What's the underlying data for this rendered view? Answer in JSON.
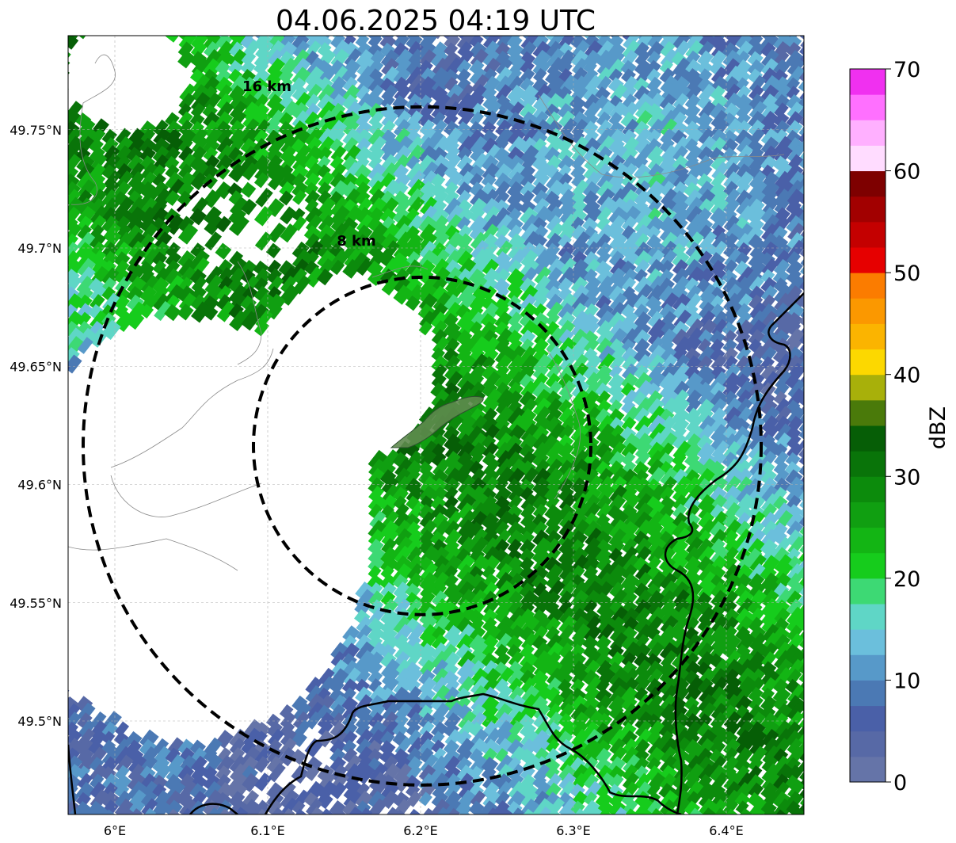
{
  "title": "04.06.2025 04:19 UTC",
  "map": {
    "lon_range": [
      5.97,
      6.45
    ],
    "lat_range": [
      49.46,
      49.79
    ],
    "x_ticks": [
      {
        "value": 6.0,
        "label": "6°E"
      },
      {
        "value": 6.1,
        "label": "6.1°E"
      },
      {
        "value": 6.2,
        "label": "6.2°E"
      },
      {
        "value": 6.3,
        "label": "6.3°E"
      },
      {
        "value": 6.4,
        "label": "6.4°E"
      }
    ],
    "y_ticks": [
      {
        "value": 49.5,
        "label": "49.5°N"
      },
      {
        "value": 49.55,
        "label": "49.55°N"
      },
      {
        "value": 49.6,
        "label": "49.6°N"
      },
      {
        "value": 49.65,
        "label": "49.65°N"
      },
      {
        "value": 49.7,
        "label": "49.7°N"
      },
      {
        "value": 49.75,
        "label": "49.75°N"
      }
    ],
    "grid": true,
    "rings": [
      {
        "label": "8 km",
        "center_lon": 6.2,
        "center_lat": 49.623
      },
      {
        "label": "16 km",
        "center_lon": 6.2,
        "center_lat": 49.623
      }
    ]
  },
  "colorbar": {
    "label": "dBZ",
    "min": 0,
    "max": 70,
    "ticks": [
      {
        "value": 0,
        "label": "0"
      },
      {
        "value": 10,
        "label": "10"
      },
      {
        "value": 20,
        "label": "20"
      },
      {
        "value": 30,
        "label": "30"
      },
      {
        "value": 40,
        "label": "40"
      },
      {
        "value": 50,
        "label": "50"
      },
      {
        "value": 60,
        "label": "60"
      },
      {
        "value": 70,
        "label": "70"
      }
    ],
    "colors": [
      "#6574a8",
      "#5769a6",
      "#4a60a8",
      "#4b79b4",
      "#5799c9",
      "#6bbfdc",
      "#5fd6c6",
      "#3dd974",
      "#16cc1c",
      "#13b514",
      "#109f11",
      "#0c8b0c",
      "#097409",
      "#065e06",
      "#4a7a0a",
      "#a8b00a",
      "#fcd800",
      "#fbb400",
      "#fb9800",
      "#fb7c00",
      "#e60000",
      "#c40000",
      "#a20000",
      "#7e0000",
      "#ffdcff",
      "#ffb0ff",
      "#ff70ff",
      "#f030f0"
    ]
  }
}
